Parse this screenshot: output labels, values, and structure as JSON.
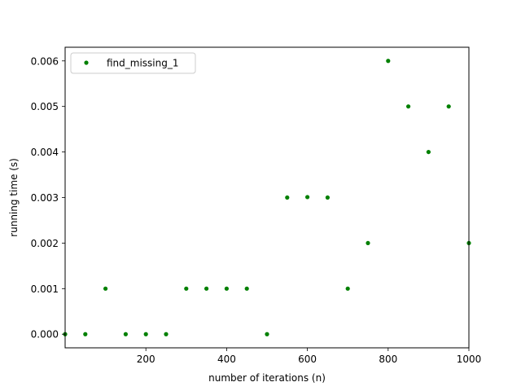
{
  "chart_data": {
    "type": "scatter",
    "title": "",
    "xlabel": "number of iterations (n)",
    "ylabel": "running time (s)",
    "xlim": [
      0,
      1000
    ],
    "ylim": [
      -0.0003,
      0.0063
    ],
    "xticks": [
      200,
      400,
      600,
      800,
      1000
    ],
    "xtick_labels": [
      "200",
      "400",
      "600",
      "800",
      "1000"
    ],
    "yticks": [
      0.0,
      0.001,
      0.002,
      0.003,
      0.004,
      0.005,
      0.006
    ],
    "ytick_labels": [
      "0.000",
      "0.001",
      "0.002",
      "0.003",
      "0.004",
      "0.005",
      "0.006"
    ],
    "grid": false,
    "legend_position": "upper-left",
    "series": [
      {
        "name": "find_missing_1",
        "color": "#008000",
        "x": [
          0,
          50,
          100,
          150,
          200,
          250,
          300,
          350,
          400,
          450,
          500,
          550,
          600,
          650,
          700,
          750,
          800,
          850,
          900,
          950,
          1000
        ],
        "y": [
          0.0,
          0.0,
          0.001,
          0.0,
          0.0,
          0.0,
          0.001,
          0.001,
          0.001,
          0.001,
          0.0,
          0.003,
          0.00301,
          0.003,
          0.001,
          0.002,
          0.006,
          0.005,
          0.004,
          0.005,
          0.002
        ]
      }
    ]
  }
}
